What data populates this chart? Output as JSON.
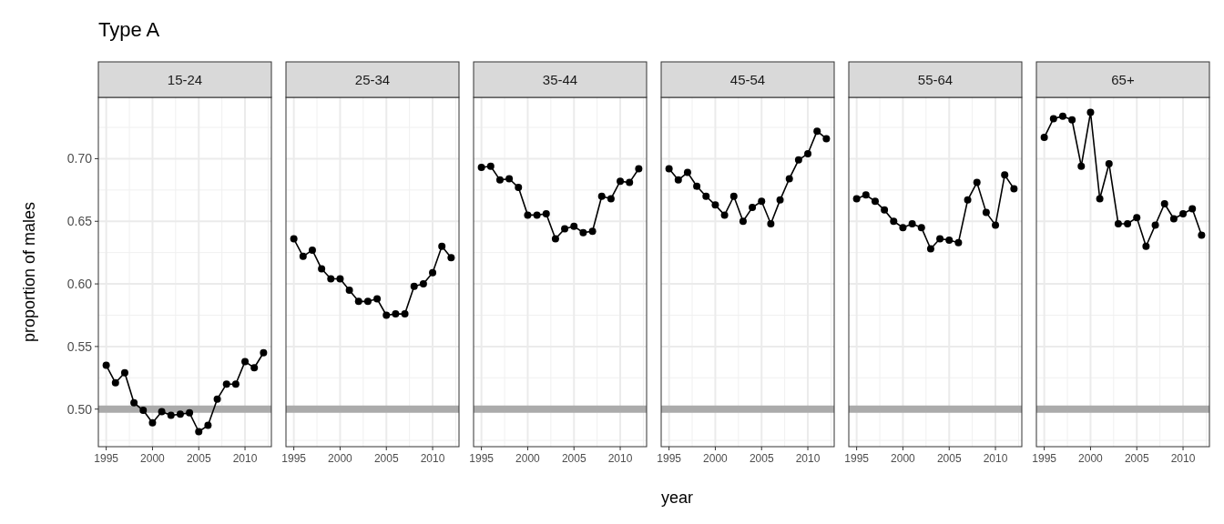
{
  "chart_data": [
    {
      "type": "line",
      "title": "Type A",
      "subtitle": "15-24",
      "ylabel": "proportion of males",
      "x": [
        1995,
        1996,
        1997,
        1998,
        1999,
        2000,
        2001,
        2002,
        2003,
        2004,
        2005,
        2006,
        2007,
        2008,
        2009,
        2010,
        2011,
        2012
      ],
      "series": [
        {
          "color": "#000000",
          "values": [
            0.535,
            0.521,
            0.529,
            0.505,
            0.499,
            0.489,
            0.498,
            0.495,
            0.496,
            0.497,
            0.482,
            0.487,
            0.508,
            0.52,
            0.52,
            0.538,
            0.533,
            0.545
          ]
        }
      ],
      "xlim": [
        1994.15,
        2012.85
      ],
      "ylim": [
        0.47,
        0.749
      ],
      "xticks": [
        1995,
        2000,
        2005,
        2010
      ],
      "yticks": [
        {
          "value": 0.5,
          "label": "0.50"
        },
        {
          "value": 0.55,
          "label": "0.55"
        },
        {
          "value": 0.6,
          "label": "0.60"
        },
        {
          "value": 0.65,
          "label": "0.65"
        },
        {
          "value": 0.7,
          "label": "0.70"
        }
      ],
      "ref_lines": [
        {
          "axis": "y",
          "value": 0.5,
          "color": "#ababab"
        }
      ],
      "grid": true,
      "marker": "circle",
      "line_style": "solid"
    },
    {
      "type": "line",
      "subtitle": "25-34",
      "x": [
        1995,
        1996,
        1997,
        1998,
        1999,
        2000,
        2001,
        2002,
        2003,
        2004,
        2005,
        2006,
        2007,
        2008,
        2009,
        2010,
        2011,
        2012
      ],
      "series": [
        {
          "color": "#000000",
          "values": [
            0.636,
            0.622,
            0.627,
            0.612,
            0.604,
            0.604,
            0.595,
            0.586,
            0.586,
            0.588,
            0.575,
            0.576,
            0.576,
            0.598,
            0.6,
            0.609,
            0.63,
            0.621
          ]
        }
      ],
      "xlim": [
        1994.15,
        2012.85
      ],
      "ylim": [
        0.47,
        0.749
      ],
      "xticks": [
        1995,
        2000,
        2005,
        2010
      ],
      "yticks": [
        0.5,
        0.55,
        0.6,
        0.65,
        0.7
      ],
      "ref_lines": [
        {
          "axis": "y",
          "value": 0.5,
          "color": "#ababab"
        }
      ],
      "grid": true,
      "marker": "circle",
      "line_style": "solid",
      "tick_labels": "x"
    },
    {
      "type": "line",
      "subtitle": "35-44",
      "x": [
        1995,
        1996,
        1997,
        1998,
        1999,
        2000,
        2001,
        2002,
        2003,
        2004,
        2005,
        2006,
        2007,
        2008,
        2009,
        2010,
        2011,
        2012
      ],
      "series": [
        {
          "color": "#000000",
          "values": [
            0.693,
            0.694,
            0.683,
            0.684,
            0.677,
            0.655,
            0.655,
            0.656,
            0.636,
            0.644,
            0.646,
            0.641,
            0.642,
            0.67,
            0.668,
            0.682,
            0.681,
            0.692
          ]
        }
      ],
      "xlim": [
        1994.15,
        2012.85
      ],
      "ylim": [
        0.47,
        0.749
      ],
      "xticks": [
        1995,
        2000,
        2005,
        2010
      ],
      "yticks": [
        0.5,
        0.55,
        0.6,
        0.65,
        0.7
      ],
      "ref_lines": [
        {
          "axis": "y",
          "value": 0.5,
          "color": "#ababab"
        }
      ],
      "grid": true,
      "marker": "circle",
      "line_style": "solid",
      "tick_labels": "x"
    },
    {
      "type": "line",
      "subtitle": "45-54",
      "xlabel": "year",
      "x": [
        1995,
        1996,
        1997,
        1998,
        1999,
        2000,
        2001,
        2002,
        2003,
        2004,
        2005,
        2006,
        2007,
        2008,
        2009,
        2010,
        2011,
        2012
      ],
      "series": [
        {
          "color": "#000000",
          "values": [
            0.692,
            0.683,
            0.689,
            0.678,
            0.67,
            0.663,
            0.655,
            0.67,
            0.65,
            0.661,
            0.666,
            0.648,
            0.667,
            0.684,
            0.699,
            0.704,
            0.722,
            0.716
          ]
        }
      ],
      "xlim": [
        1994.15,
        2012.85
      ],
      "ylim": [
        0.47,
        0.749
      ],
      "xticks": [
        1995,
        2000,
        2005,
        2010
      ],
      "yticks": [
        0.5,
        0.55,
        0.6,
        0.65,
        0.7
      ],
      "ref_lines": [
        {
          "axis": "y",
          "value": 0.5,
          "color": "#ababab"
        }
      ],
      "grid": true,
      "marker": "circle",
      "line_style": "solid",
      "tick_labels": "x"
    },
    {
      "type": "line",
      "subtitle": "55-64",
      "x": [
        1995,
        1996,
        1997,
        1998,
        1999,
        2000,
        2001,
        2002,
        2003,
        2004,
        2005,
        2006,
        2007,
        2008,
        2009,
        2010,
        2011,
        2012
      ],
      "series": [
        {
          "color": "#000000",
          "values": [
            0.668,
            0.671,
            0.666,
            0.659,
            0.65,
            0.645,
            0.648,
            0.645,
            0.628,
            0.636,
            0.635,
            0.633,
            0.667,
            0.681,
            0.657,
            0.647,
            0.687,
            0.676
          ]
        }
      ],
      "xlim": [
        1994.15,
        2012.85
      ],
      "ylim": [
        0.47,
        0.749
      ],
      "xticks": [
        1995,
        2000,
        2005,
        2010
      ],
      "yticks": [
        0.5,
        0.55,
        0.6,
        0.65,
        0.7
      ],
      "ref_lines": [
        {
          "axis": "y",
          "value": 0.5,
          "color": "#ababab"
        }
      ],
      "grid": true,
      "marker": "circle",
      "line_style": "solid",
      "tick_labels": "x"
    },
    {
      "type": "line",
      "subtitle": "65+",
      "x": [
        1995,
        1996,
        1997,
        1998,
        1999,
        2000,
        2001,
        2002,
        2003,
        2004,
        2005,
        2006,
        2007,
        2008,
        2009,
        2010,
        2011,
        2012
      ],
      "series": [
        {
          "color": "#000000",
          "values": [
            0.717,
            0.732,
            0.734,
            0.731,
            0.694,
            0.737,
            0.668,
            0.696,
            0.648,
            0.648,
            0.653,
            0.63,
            0.647,
            0.664,
            0.652,
            0.656,
            0.66,
            0.639
          ]
        }
      ],
      "xlim": [
        1994.15,
        2012.85
      ],
      "ylim": [
        0.47,
        0.749
      ],
      "xticks": [
        1995,
        2000,
        2005,
        2010
      ],
      "yticks": [
        0.5,
        0.55,
        0.6,
        0.65,
        0.7
      ],
      "ref_lines": [
        {
          "axis": "y",
          "value": 0.5,
          "color": "#ababab"
        }
      ],
      "grid": true,
      "marker": "circle",
      "line_style": "solid",
      "tick_labels": "x"
    }
  ]
}
